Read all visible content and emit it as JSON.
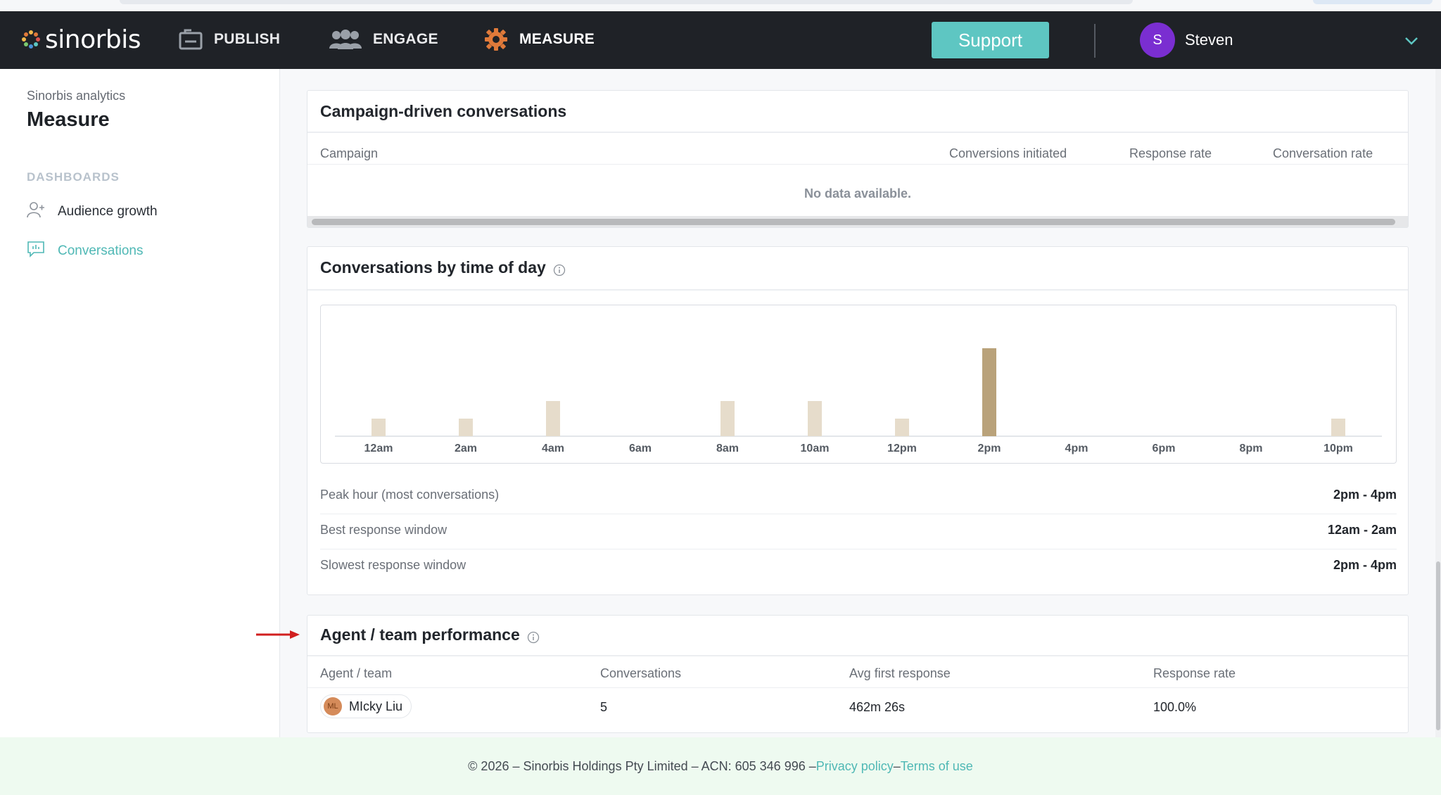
{
  "nav": {
    "logo_text": "sinorbis",
    "items": [
      {
        "label": "PUBLISH",
        "icon": "publish-icon"
      },
      {
        "label": "ENGAGE",
        "icon": "people-icon"
      },
      {
        "label": "MEASURE",
        "icon": "gear-icon",
        "active": true
      }
    ],
    "support_label": "Support",
    "user": {
      "initial": "S",
      "name": "Steven",
      "avatar_color": "#7a2ed1"
    }
  },
  "sidebar": {
    "subtitle": "Sinorbis analytics",
    "title": "Measure",
    "section_label": "DASHBOARDS",
    "items": [
      {
        "label": "Audience growth",
        "icon": "audience-icon"
      },
      {
        "label": "Conversations",
        "icon": "chat-icon",
        "active": true
      }
    ]
  },
  "campaign_card": {
    "title": "Campaign-driven conversations",
    "columns": [
      "Campaign",
      "Conversions initiated",
      "Response rate",
      "Conversation rate"
    ],
    "empty_text": "No data available."
  },
  "time_card": {
    "title": "Conversations by time of day",
    "stats": [
      {
        "label": "Peak hour (most conversations)",
        "value": "2pm - 4pm"
      },
      {
        "label": "Best response window",
        "value": "12am - 2am"
      },
      {
        "label": "Slowest response window",
        "value": "2pm - 4pm"
      }
    ]
  },
  "chart_data": {
    "type": "bar",
    "categories": [
      "12am",
      "2am",
      "4am",
      "6am",
      "8am",
      "10am",
      "12pm",
      "2pm",
      "4pm",
      "6pm",
      "8pm",
      "10pm"
    ],
    "values": [
      1,
      1,
      2,
      0,
      2,
      2,
      1,
      5,
      0,
      0,
      0,
      1
    ],
    "highlight_index": 7,
    "bar_color": "#e6dccb",
    "highlight_color": "#b9a27a",
    "ylim": [
      0,
      6
    ],
    "grid": false
  },
  "agent_card": {
    "title": "Agent / team performance",
    "columns": [
      "Agent / team",
      "Conversations",
      "Avg first response",
      "Response rate"
    ],
    "rows": [
      {
        "initials": "ML",
        "name": "MIcky Liu",
        "conversations": "5",
        "avg_first_response": "462m 26s",
        "response_rate": "100.0%"
      }
    ]
  },
  "footer": {
    "text": "© 2026 – Sinorbis Holdings Pty Limited – ACN: 605 346 996 – ",
    "privacy_label": "Privacy policy",
    "separator": " – ",
    "terms_label": "Terms of use"
  },
  "colors": {
    "accent": "#5ec6c2",
    "nav_bg": "#1f2227",
    "measure_icon": "#e07a3a"
  }
}
